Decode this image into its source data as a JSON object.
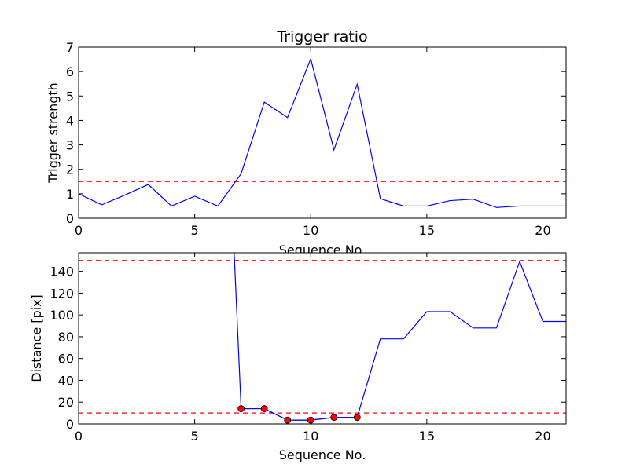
{
  "chart_data": [
    {
      "type": "line",
      "title": "Trigger ratio",
      "xlabel": "Sequence No.",
      "ylabel": "Trigger strength",
      "xlim": [
        0,
        21
      ],
      "ylim": [
        0,
        7
      ],
      "xticks": [
        0,
        5,
        10,
        15,
        20
      ],
      "yticks": [
        0,
        1,
        2,
        3,
        4,
        5,
        6,
        7
      ],
      "grid": false,
      "series": [
        {
          "color": "#0000ff",
          "x": [
            0,
            1,
            2,
            3,
            4,
            5,
            6,
            7,
            8,
            9,
            10,
            11,
            12,
            13,
            14,
            15,
            16,
            17,
            18,
            19,
            20,
            21
          ],
          "values": [
            1.0,
            0.55,
            0.95,
            1.38,
            0.5,
            0.9,
            0.5,
            1.82,
            4.75,
            4.12,
            6.52,
            2.8,
            5.48,
            0.8,
            0.5,
            0.5,
            0.72,
            0.78,
            0.44,
            0.5,
            0.5,
            0.5
          ]
        }
      ],
      "hlines": [
        {
          "y": 1.5,
          "color": "#ff0000",
          "style": "dashed"
        }
      ]
    },
    {
      "type": "line",
      "title": "",
      "xlabel": "Sequence No.",
      "ylabel": "Distance [pix]",
      "xlim": [
        0,
        21
      ],
      "ylim": [
        0,
        157
      ],
      "xticks": [
        0,
        5,
        10,
        15,
        20
      ],
      "yticks": [
        0,
        20,
        40,
        60,
        80,
        100,
        120,
        140
      ],
      "grid": false,
      "series": [
        {
          "color": "#0000ff",
          "x": [
            6.7,
            7,
            8,
            9,
            10,
            11,
            12,
            13,
            14,
            15,
            16,
            17,
            18,
            19,
            20,
            21
          ],
          "values": [
            157,
            14,
            14,
            3.5,
            3.5,
            6,
            6,
            78,
            78,
            103,
            103,
            88,
            88,
            149,
            94,
            94
          ]
        },
        {
          "color": "#ff0000",
          "marker": "circle",
          "x": [
            7,
            8,
            9,
            10,
            11,
            12
          ],
          "values": [
            14,
            14,
            3.5,
            3.5,
            6,
            6
          ]
        }
      ],
      "hlines": [
        {
          "y": 150,
          "color": "#ff0000",
          "style": "dashed"
        },
        {
          "y": 10,
          "color": "#ff0000",
          "style": "dashed"
        }
      ]
    }
  ]
}
